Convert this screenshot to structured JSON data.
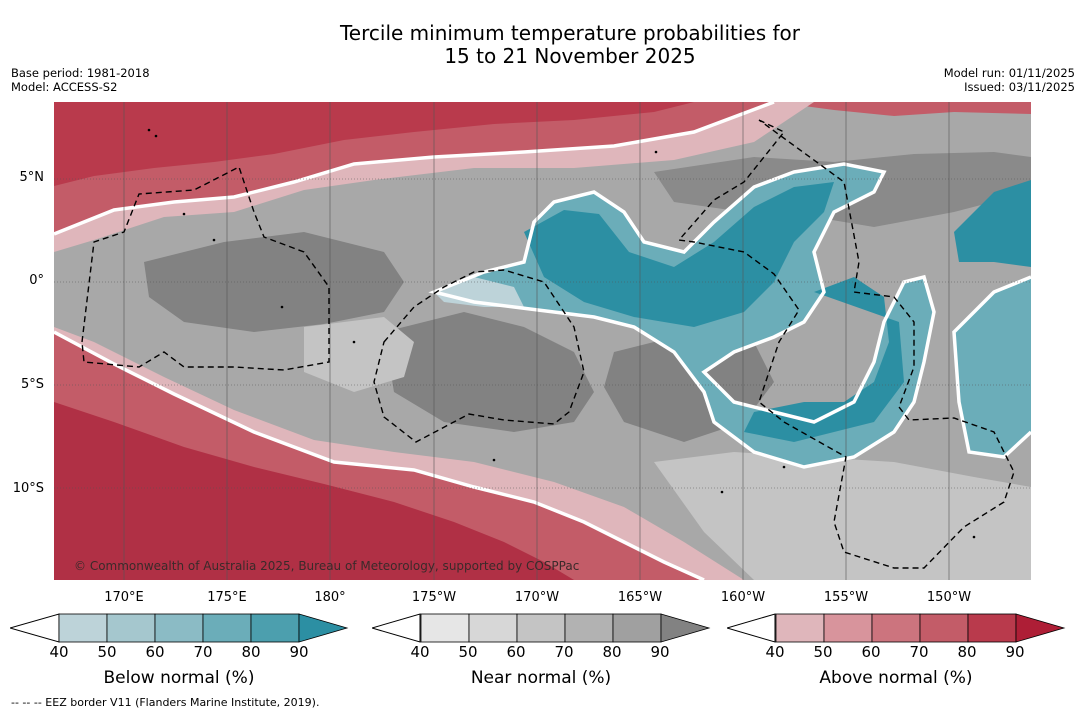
{
  "title": {
    "line1": "Tercile minimum temperature probabilities for",
    "line2": "15 to 21 November 2025"
  },
  "meta": {
    "base_period": "Base period: 1981-2018",
    "model": "Model: ACCESS-S2",
    "model_run": "Model run: 01/11/2025",
    "issued": "Issued: 03/11/2025"
  },
  "map": {
    "lat_labels": [
      "5°N",
      "0°",
      "5°S",
      "10°S"
    ],
    "lon_labels": [
      "170°E",
      "175°E",
      "180°",
      "175°W",
      "170°W",
      "165°W",
      "160°W",
      "155°W",
      "150°W"
    ],
    "credit": "© Commonwealth of Australia 2025, Bureau of Meteorology, supported by COSPPac",
    "colors": {
      "above_bg": "#b83040",
      "near_bg": "#a8a8a8",
      "below_bg": "#3c9aab"
    }
  },
  "colorbars": [
    {
      "title": "Below normal (%)",
      "ticks": [
        "40",
        "50",
        "60",
        "70",
        "80",
        "90"
      ],
      "colors": [
        "#bdd3d9",
        "#a5c7ce",
        "#8bbbc5",
        "#6badb9",
        "#4c9fae",
        "#2c8fa3"
      ]
    },
    {
      "title": "Near normal (%)",
      "ticks": [
        "40",
        "50",
        "60",
        "70",
        "80",
        "90"
      ],
      "colors": [
        "#e6e6e6",
        "#d7d7d7",
        "#c4c4c4",
        "#b2b2b2",
        "#a0a0a0",
        "#828282"
      ]
    },
    {
      "title": "Above normal (%)",
      "ticks": [
        "40",
        "50",
        "60",
        "70",
        "80",
        "90"
      ],
      "colors": [
        "#dfb6bb",
        "#d8949c",
        "#cc747e",
        "#c35c68",
        "#b93a4c",
        "#ae1e36"
      ]
    }
  ],
  "footnote": "--  --  -- EEZ border V11 (Flanders Marine Institute, 2019)."
}
